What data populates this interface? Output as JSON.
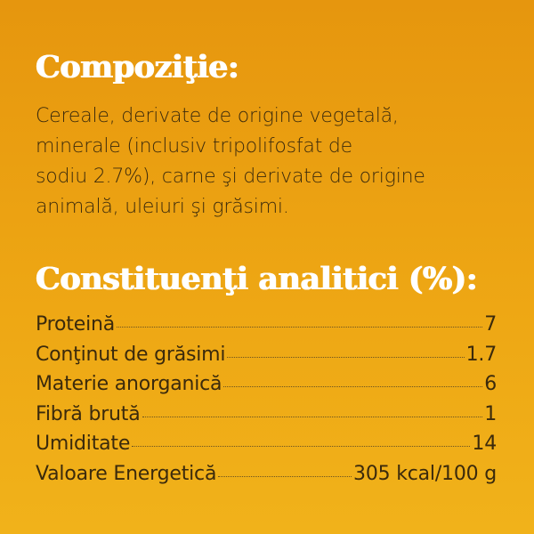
{
  "composition": {
    "title": "Compoziţie:",
    "lines": [
      "Cereale, derivate de origine vegetală,",
      "minerale (inclusiv tripolifosfat de",
      "sodiu 2.7%), carne şi derivate de origine",
      "animală, uleiuri şi grăsimi."
    ]
  },
  "analysis": {
    "title": "Constituenţi analitici (%):",
    "rows": [
      [
        "Proteină",
        "7"
      ],
      [
        "Conţinut de grăsimi",
        "1.7"
      ],
      [
        "Materie anorganică",
        "6"
      ],
      [
        "Fibră brută",
        "1"
      ],
      [
        "Umiditate",
        "14"
      ],
      [
        "Valoare Energetică",
        "305 kcal/100 g"
      ]
    ]
  }
}
